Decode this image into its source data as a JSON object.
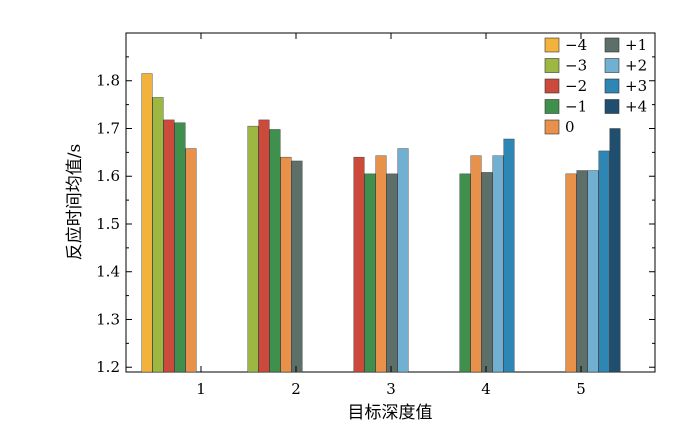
{
  "chart_data": {
    "type": "bar",
    "title": "",
    "xlabel": "目标深度值",
    "ylabel": "反应时间均值/s",
    "categories": [
      "1",
      "2",
      "3",
      "4",
      "5"
    ],
    "ylim": [
      1.19,
      1.9
    ],
    "yticks": [
      1.2,
      1.3,
      1.4,
      1.5,
      1.6,
      1.7,
      1.8
    ],
    "ytick_labels": [
      "1.2",
      "1.3",
      "1.4",
      "1.5",
      "1.6",
      "1.7",
      "1.8"
    ],
    "grid": false,
    "legend_position": "top-right",
    "series": [
      {
        "name": "−4",
        "color": "#f2b33c",
        "values": [
          1.815,
          null,
          null,
          null,
          null
        ]
      },
      {
        "name": "−3",
        "color": "#9cb843",
        "values": [
          1.765,
          1.705,
          null,
          null,
          null
        ]
      },
      {
        "name": "−2",
        "color": "#cc4a3b",
        "values": [
          1.718,
          1.718,
          1.64,
          null,
          null
        ]
      },
      {
        "name": "−1",
        "color": "#3f8f4d",
        "values": [
          1.712,
          1.698,
          1.605,
          1.605,
          null
        ]
      },
      {
        "name": "0",
        "color": "#e8914a",
        "values": [
          1.658,
          1.64,
          1.643,
          1.643,
          1.605
        ]
      },
      {
        "name": "+1",
        "color": "#5c6f68",
        "values": [
          null,
          1.632,
          1.605,
          1.608,
          1.612
        ]
      },
      {
        "name": "+2",
        "color": "#72b0d2",
        "values": [
          null,
          null,
          1.658,
          1.643,
          1.612
        ]
      },
      {
        "name": "+3",
        "color": "#2d86b4",
        "values": [
          null,
          null,
          null,
          1.678,
          1.653
        ]
      },
      {
        "name": "+4",
        "color": "#1f4e6e",
        "values": [
          null,
          null,
          null,
          null,
          1.7
        ]
      }
    ]
  }
}
